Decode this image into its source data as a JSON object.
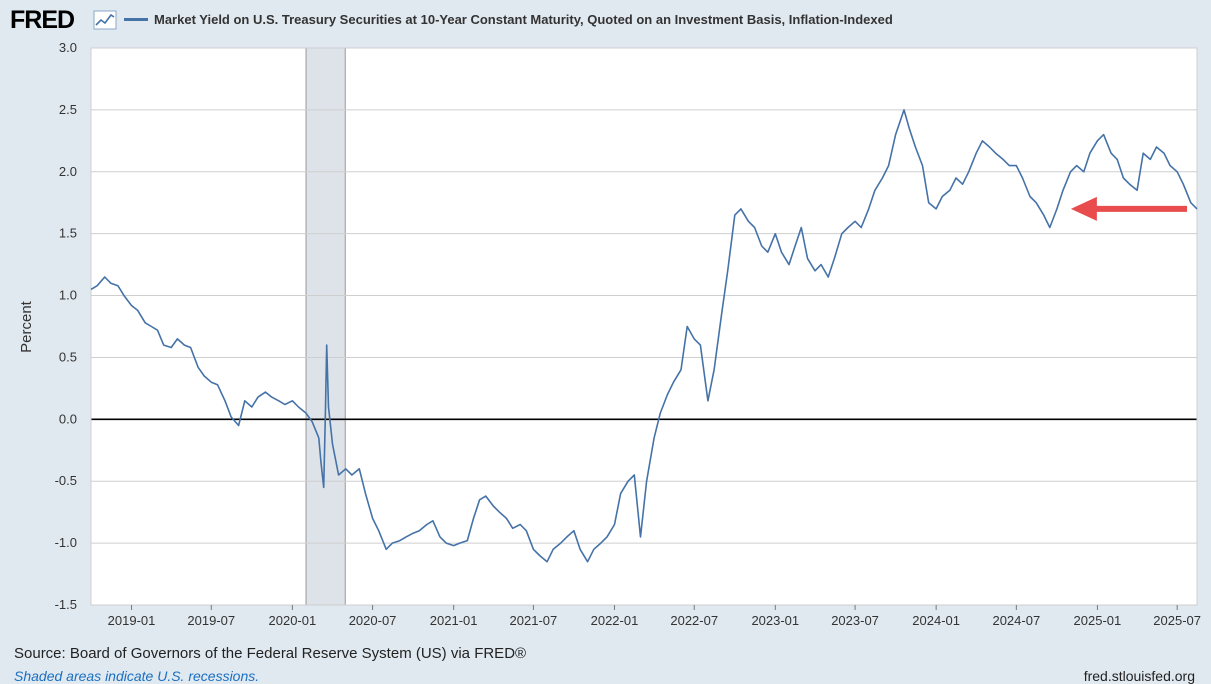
{
  "header": {
    "logo_text": "FRED",
    "legend_label": "Market Yield on U.S. Treasury Securities at 10-Year Constant Maturity, Quoted on an Investment Basis, Inflation-Indexed"
  },
  "footer": {
    "source": "Source: Board of Governors of the Federal Reserve System (US) via FRED®",
    "note": "Shaded areas indicate U.S. recessions.",
    "url": "fred.stlouisfed.org"
  },
  "colors": {
    "series": "#4572a7",
    "arrow": "#e84c4c",
    "recession": "#dde3e9",
    "plot_bg": "#ffffff",
    "page_bg": "#e1e9f0"
  },
  "chart_data": {
    "type": "line",
    "title": "",
    "xlabel": "",
    "ylabel": "Percent",
    "ylim": [
      -1.5,
      3.0
    ],
    "xlim": [
      "2018-10-01",
      "2025-08-15"
    ],
    "y_ticks": [
      "3.0",
      "2.5",
      "2.0",
      "1.5",
      "1.0",
      "0.5",
      "0.0",
      "-0.5",
      "-1.0",
      "-1.5"
    ],
    "x_ticks": [
      "2019-01",
      "2019-07",
      "2020-01",
      "2020-07",
      "2021-01",
      "2021-07",
      "2022-01",
      "2022-07",
      "2023-01",
      "2023-07",
      "2024-01",
      "2024-07",
      "2025-01",
      "2025-07"
    ],
    "grid": true,
    "recessions": [
      {
        "start": "2020-02-01",
        "end": "2020-04-30"
      }
    ],
    "annotation": {
      "type": "arrow",
      "date": "2024-10-01",
      "value": 1.7
    },
    "series": [
      {
        "name": "Market Yield on U.S. Treasury Securities at 10-Year Constant Maturity, Quoted on an Investment Basis, Inflation-Indexed",
        "points": [
          [
            "2018-10-01",
            1.05
          ],
          [
            "2018-10-15",
            1.08
          ],
          [
            "2018-11-01",
            1.15
          ],
          [
            "2018-11-15",
            1.1
          ],
          [
            "2018-12-01",
            1.08
          ],
          [
            "2018-12-15",
            1.0
          ],
          [
            "2019-01-01",
            0.92
          ],
          [
            "2019-01-15",
            0.88
          ],
          [
            "2019-02-01",
            0.78
          ],
          [
            "2019-02-15",
            0.75
          ],
          [
            "2019-03-01",
            0.72
          ],
          [
            "2019-03-15",
            0.6
          ],
          [
            "2019-04-01",
            0.58
          ],
          [
            "2019-04-15",
            0.65
          ],
          [
            "2019-05-01",
            0.6
          ],
          [
            "2019-05-15",
            0.58
          ],
          [
            "2019-06-01",
            0.42
          ],
          [
            "2019-06-15",
            0.35
          ],
          [
            "2019-07-01",
            0.3
          ],
          [
            "2019-07-15",
            0.28
          ],
          [
            "2019-08-01",
            0.15
          ],
          [
            "2019-08-15",
            0.02
          ],
          [
            "2019-09-01",
            -0.05
          ],
          [
            "2019-09-15",
            0.15
          ],
          [
            "2019-10-01",
            0.1
          ],
          [
            "2019-10-15",
            0.18
          ],
          [
            "2019-11-01",
            0.22
          ],
          [
            "2019-11-15",
            0.18
          ],
          [
            "2019-12-01",
            0.15
          ],
          [
            "2019-12-15",
            0.12
          ],
          [
            "2020-01-01",
            0.15
          ],
          [
            "2020-01-15",
            0.1
          ],
          [
            "2020-02-01",
            0.05
          ],
          [
            "2020-02-15",
            -0.02
          ],
          [
            "2020-03-01",
            -0.15
          ],
          [
            "2020-03-06",
            -0.35
          ],
          [
            "2020-03-12",
            -0.55
          ],
          [
            "2020-03-16",
            0.05
          ],
          [
            "2020-03-19",
            0.6
          ],
          [
            "2020-03-23",
            0.1
          ],
          [
            "2020-04-01",
            -0.2
          ],
          [
            "2020-04-15",
            -0.45
          ],
          [
            "2020-05-01",
            -0.4
          ],
          [
            "2020-05-15",
            -0.45
          ],
          [
            "2020-06-01",
            -0.4
          ],
          [
            "2020-06-15",
            -0.6
          ],
          [
            "2020-07-01",
            -0.8
          ],
          [
            "2020-07-15",
            -0.9
          ],
          [
            "2020-08-01",
            -1.05
          ],
          [
            "2020-08-15",
            -1.0
          ],
          [
            "2020-09-01",
            -0.98
          ],
          [
            "2020-09-15",
            -0.95
          ],
          [
            "2020-10-01",
            -0.92
          ],
          [
            "2020-10-15",
            -0.9
          ],
          [
            "2020-11-01",
            -0.85
          ],
          [
            "2020-11-15",
            -0.82
          ],
          [
            "2020-12-01",
            -0.95
          ],
          [
            "2020-12-15",
            -1.0
          ],
          [
            "2021-01-01",
            -1.02
          ],
          [
            "2021-01-15",
            -1.0
          ],
          [
            "2021-02-01",
            -0.98
          ],
          [
            "2021-02-15",
            -0.8
          ],
          [
            "2021-03-01",
            -0.65
          ],
          [
            "2021-03-15",
            -0.62
          ],
          [
            "2021-04-01",
            -0.7
          ],
          [
            "2021-04-15",
            -0.75
          ],
          [
            "2021-05-01",
            -0.8
          ],
          [
            "2021-05-15",
            -0.88
          ],
          [
            "2021-06-01",
            -0.85
          ],
          [
            "2021-06-15",
            -0.9
          ],
          [
            "2021-07-01",
            -1.05
          ],
          [
            "2021-07-15",
            -1.1
          ],
          [
            "2021-08-01",
            -1.15
          ],
          [
            "2021-08-15",
            -1.05
          ],
          [
            "2021-09-01",
            -1.0
          ],
          [
            "2021-09-15",
            -0.95
          ],
          [
            "2021-10-01",
            -0.9
          ],
          [
            "2021-10-15",
            -1.05
          ],
          [
            "2021-11-01",
            -1.15
          ],
          [
            "2021-11-15",
            -1.05
          ],
          [
            "2021-12-01",
            -1.0
          ],
          [
            "2021-12-15",
            -0.95
          ],
          [
            "2022-01-01",
            -0.85
          ],
          [
            "2022-01-15",
            -0.6
          ],
          [
            "2022-02-01",
            -0.5
          ],
          [
            "2022-02-15",
            -0.45
          ],
          [
            "2022-03-01",
            -0.95
          ],
          [
            "2022-03-15",
            -0.5
          ],
          [
            "2022-04-01",
            -0.15
          ],
          [
            "2022-04-15",
            0.05
          ],
          [
            "2022-05-01",
            0.2
          ],
          [
            "2022-05-15",
            0.3
          ],
          [
            "2022-06-01",
            0.4
          ],
          [
            "2022-06-15",
            0.75
          ],
          [
            "2022-07-01",
            0.65
          ],
          [
            "2022-07-15",
            0.6
          ],
          [
            "2022-08-01",
            0.15
          ],
          [
            "2022-08-15",
            0.4
          ],
          [
            "2022-09-01",
            0.85
          ],
          [
            "2022-09-15",
            1.2
          ],
          [
            "2022-10-01",
            1.65
          ],
          [
            "2022-10-15",
            1.7
          ],
          [
            "2022-11-01",
            1.6
          ],
          [
            "2022-11-15",
            1.55
          ],
          [
            "2022-12-01",
            1.4
          ],
          [
            "2022-12-15",
            1.35
          ],
          [
            "2023-01-01",
            1.5
          ],
          [
            "2023-01-15",
            1.35
          ],
          [
            "2023-02-01",
            1.25
          ],
          [
            "2023-02-15",
            1.4
          ],
          [
            "2023-03-01",
            1.55
          ],
          [
            "2023-03-15",
            1.3
          ],
          [
            "2023-04-01",
            1.2
          ],
          [
            "2023-04-15",
            1.25
          ],
          [
            "2023-05-01",
            1.15
          ],
          [
            "2023-05-15",
            1.3
          ],
          [
            "2023-06-01",
            1.5
          ],
          [
            "2023-06-15",
            1.55
          ],
          [
            "2023-07-01",
            1.6
          ],
          [
            "2023-07-15",
            1.55
          ],
          [
            "2023-08-01",
            1.7
          ],
          [
            "2023-08-15",
            1.85
          ],
          [
            "2023-09-01",
            1.95
          ],
          [
            "2023-09-15",
            2.05
          ],
          [
            "2023-10-01",
            2.3
          ],
          [
            "2023-10-20",
            2.5
          ],
          [
            "2023-11-01",
            2.35
          ],
          [
            "2023-11-15",
            2.2
          ],
          [
            "2023-12-01",
            2.05
          ],
          [
            "2023-12-15",
            1.75
          ],
          [
            "2024-01-01",
            1.7
          ],
          [
            "2024-01-15",
            1.8
          ],
          [
            "2024-02-01",
            1.85
          ],
          [
            "2024-02-15",
            1.95
          ],
          [
            "2024-03-01",
            1.9
          ],
          [
            "2024-03-15",
            2.0
          ],
          [
            "2024-04-01",
            2.15
          ],
          [
            "2024-04-15",
            2.25
          ],
          [
            "2024-05-01",
            2.2
          ],
          [
            "2024-05-15",
            2.15
          ],
          [
            "2024-06-01",
            2.1
          ],
          [
            "2024-06-15",
            2.05
          ],
          [
            "2024-07-01",
            2.05
          ],
          [
            "2024-07-15",
            1.95
          ],
          [
            "2024-08-01",
            1.8
          ],
          [
            "2024-08-15",
            1.75
          ],
          [
            "2024-09-01",
            1.65
          ],
          [
            "2024-09-15",
            1.55
          ],
          [
            "2024-10-01",
            1.7
          ],
          [
            "2024-10-15",
            1.85
          ],
          [
            "2024-11-01",
            2.0
          ],
          [
            "2024-11-15",
            2.05
          ],
          [
            "2024-12-01",
            2.0
          ],
          [
            "2024-12-15",
            2.15
          ],
          [
            "2025-01-01",
            2.25
          ],
          [
            "2025-01-15",
            2.3
          ],
          [
            "2025-02-01",
            2.15
          ],
          [
            "2025-02-15",
            2.1
          ],
          [
            "2025-03-01",
            1.95
          ],
          [
            "2025-03-15",
            1.9
          ],
          [
            "2025-04-01",
            1.85
          ],
          [
            "2025-04-15",
            2.15
          ],
          [
            "2025-05-01",
            2.1
          ],
          [
            "2025-05-15",
            2.2
          ],
          [
            "2025-06-01",
            2.15
          ],
          [
            "2025-06-15",
            2.05
          ],
          [
            "2025-07-01",
            2.0
          ],
          [
            "2025-07-15",
            1.9
          ],
          [
            "2025-08-01",
            1.75
          ],
          [
            "2025-08-15",
            1.7
          ]
        ]
      }
    ]
  }
}
